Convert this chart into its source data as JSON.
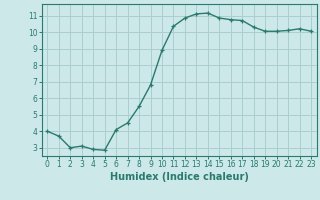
{
  "x": [
    0,
    1,
    2,
    3,
    4,
    5,
    6,
    7,
    8,
    9,
    10,
    11,
    12,
    13,
    14,
    15,
    16,
    17,
    18,
    19,
    20,
    21,
    22,
    23
  ],
  "y": [
    4.0,
    3.7,
    3.0,
    3.1,
    2.9,
    2.85,
    4.1,
    4.5,
    5.5,
    6.8,
    8.9,
    10.35,
    10.85,
    11.1,
    11.15,
    10.85,
    10.75,
    10.7,
    10.3,
    10.05,
    10.05,
    10.1,
    10.2,
    10.05
  ],
  "xlabel": "Humidex (Indice chaleur)",
  "xlim": [
    -0.5,
    23.5
  ],
  "ylim": [
    2.5,
    11.7
  ],
  "yticks": [
    3,
    4,
    5,
    6,
    7,
    8,
    9,
    10,
    11
  ],
  "xticks": [
    0,
    1,
    2,
    3,
    4,
    5,
    6,
    7,
    8,
    9,
    10,
    11,
    12,
    13,
    14,
    15,
    16,
    17,
    18,
    19,
    20,
    21,
    22,
    23
  ],
  "line_color": "#2a7a6e",
  "marker": "+",
  "bg_color": "#cce8e8",
  "grid_color": "#aacece",
  "axis_color": "#2a7a6e",
  "tick_label_color": "#2a7a6e",
  "xlabel_color": "#2a7a6e",
  "xlabel_fontsize": 7,
  "tick_fontsize": 5.5,
  "linewidth": 1.0,
  "markersize": 3.5
}
